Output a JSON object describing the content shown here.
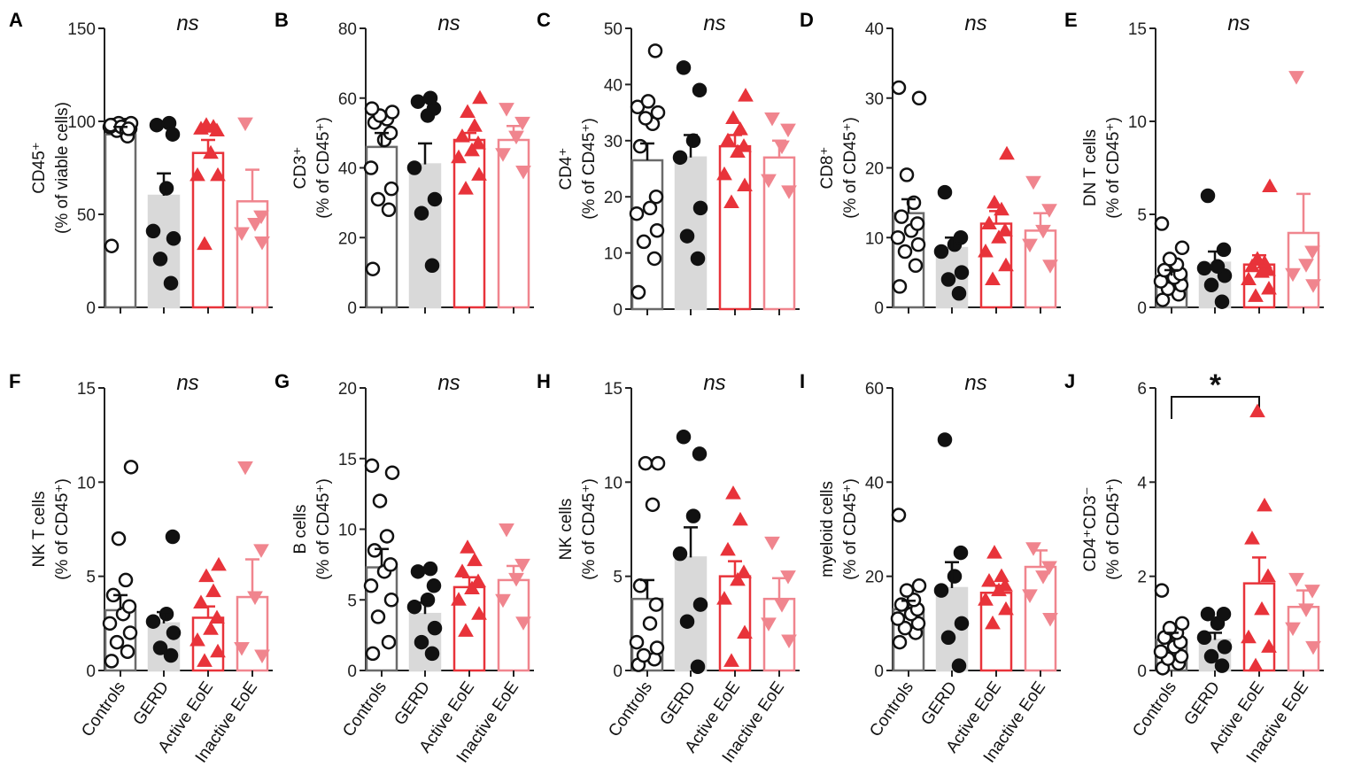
{
  "figure": {
    "groups": [
      "Controls",
      "GERD",
      "Active EoE",
      "Inactive EoE"
    ],
    "ns_label": "ns",
    "colors": {
      "controls": "#6b6b6b",
      "gerd_fill": "#d9d9d9",
      "gerd_points": "#111111",
      "active": "#e8333a",
      "inactive": "#f0858e",
      "axis": "#222222"
    }
  },
  "chart_data": [
    {
      "panel": "A",
      "type": "bar",
      "ylabel": [
        "CD45⁺",
        "(% of viable cells)"
      ],
      "ylim": [
        0,
        150
      ],
      "ticks": [
        0,
        50,
        100,
        150
      ],
      "annotation": "ns",
      "series": [
        {
          "name": "Controls",
          "mean": 93,
          "sem": 4,
          "points": [
            33,
            92,
            95,
            96,
            97,
            97,
            98,
            98,
            98,
            99,
            99,
            98,
            97,
            96
          ]
        },
        {
          "name": "GERD",
          "mean": 60,
          "sem": 12,
          "points": [
            13,
            26,
            37,
            41,
            64,
            93,
            98,
            99
          ]
        },
        {
          "name": "Active EoE",
          "mean": 83,
          "sem": 7,
          "points": [
            34,
            71,
            71,
            83,
            95,
            96,
            97,
            98
          ]
        },
        {
          "name": "Inactive EoE",
          "mean": 57,
          "sem": 17,
          "points": [
            35,
            40,
            45,
            49,
            99
          ]
        }
      ]
    },
    {
      "panel": "B",
      "type": "bar",
      "ylabel": [
        "CD3⁺",
        "(% of CD45⁺)"
      ],
      "ylim": [
        0,
        80
      ],
      "ticks": [
        0,
        20,
        40,
        60,
        80
      ],
      "annotation": "ns",
      "series": [
        {
          "name": "Controls",
          "mean": 46,
          "sem": 4,
          "points": [
            11,
            28,
            31,
            34,
            40,
            48,
            50,
            53,
            54,
            55,
            56,
            57
          ]
        },
        {
          "name": "GERD",
          "mean": 41,
          "sem": 6,
          "points": [
            12,
            27,
            31,
            40,
            55,
            57,
            59,
            60
          ]
        },
        {
          "name": "Active EoE",
          "mean": 48,
          "sem": 2,
          "points": [
            34,
            38,
            43,
            45,
            47,
            49,
            52,
            56,
            60
          ]
        },
        {
          "name": "Inactive EoE",
          "mean": 48,
          "sem": 4,
          "points": [
            39,
            44,
            49,
            53,
            57
          ]
        }
      ]
    },
    {
      "panel": "C",
      "type": "bar",
      "ylabel": [
        "CD4⁺",
        "(% of CD45⁺)"
      ],
      "ylim": [
        0,
        50
      ],
      "ticks": [
        0,
        10,
        20,
        30,
        40,
        50
      ],
      "annotation": "ns",
      "series": [
        {
          "name": "Controls",
          "mean": 26.5,
          "sem": 3,
          "points": [
            3,
            9,
            12,
            14,
            17,
            18,
            20,
            29,
            33,
            34,
            35,
            36,
            37,
            46
          ]
        },
        {
          "name": "GERD",
          "mean": 27,
          "sem": 4,
          "points": [
            9,
            13,
            18,
            27,
            30,
            39,
            43
          ]
        },
        {
          "name": "Active EoE",
          "mean": 29,
          "sem": 2,
          "points": [
            19,
            22,
            24,
            28,
            29,
            30,
            32,
            34,
            38
          ]
        },
        {
          "name": "Inactive EoE",
          "mean": 27,
          "sem": 3,
          "points": [
            21,
            23,
            29,
            32,
            34
          ]
        }
      ]
    },
    {
      "panel": "D",
      "type": "bar",
      "ylabel": [
        "CD8⁺",
        "(% of CD45⁺)"
      ],
      "ylim": [
        0,
        40
      ],
      "ticks": [
        0,
        10,
        20,
        30,
        40
      ],
      "annotation": "ns",
      "series": [
        {
          "name": "Controls",
          "mean": 13.5,
          "sem": 2,
          "points": [
            3,
            6,
            8,
            9,
            10,
            11,
            12,
            13,
            15,
            19,
            30,
            31.5
          ]
        },
        {
          "name": "GERD",
          "mean": 8.5,
          "sem": 1.5,
          "points": [
            2,
            4,
            5,
            8,
            9,
            10,
            16.5
          ]
        },
        {
          "name": "Active EoE",
          "mean": 12,
          "sem": 1.8,
          "points": [
            4,
            6,
            8,
            10,
            11,
            12,
            14,
            15,
            22
          ]
        },
        {
          "name": "Inactive EoE",
          "mean": 11,
          "sem": 2.5,
          "points": [
            6,
            9,
            11,
            14,
            18
          ]
        }
      ]
    },
    {
      "panel": "E",
      "type": "bar",
      "ylabel": [
        "DN T cells",
        "(% of CD45⁺)"
      ],
      "ylim": [
        0,
        15
      ],
      "ticks": [
        0,
        5,
        10,
        15
      ],
      "annotation": "ns",
      "series": [
        {
          "name": "Controls",
          "mean": 1.7,
          "sem": 0.3,
          "points": [
            0.4,
            0.7,
            1.0,
            1.2,
            1.4,
            1.6,
            1.8,
            2.0,
            2.3,
            2.6,
            3.2,
            4.5
          ]
        },
        {
          "name": "GERD",
          "mean": 2.4,
          "sem": 0.6,
          "points": [
            0.3,
            1.2,
            1.7,
            2.1,
            2.2,
            3.1,
            6.0
          ]
        },
        {
          "name": "Active EoE",
          "mean": 2.3,
          "sem": 0.5,
          "points": [
            0.6,
            1.0,
            1.5,
            1.9,
            2.0,
            2.2,
            2.4,
            2.6,
            6.5
          ]
        },
        {
          "name": "Inactive EoE",
          "mean": 4.0,
          "sem": 2.1,
          "points": [
            1.2,
            1.8,
            2.3,
            3.0,
            12.4
          ]
        }
      ]
    },
    {
      "panel": "F",
      "type": "bar",
      "ylabel": [
        "NK T cells",
        "(% of CD45⁺)"
      ],
      "ylim": [
        0,
        15
      ],
      "ticks": [
        0,
        5,
        10,
        15
      ],
      "annotation": "ns",
      "series": [
        {
          "name": "Controls",
          "mean": 3.2,
          "sem": 0.8,
          "points": [
            0.5,
            1.0,
            1.5,
            2.0,
            2.5,
            3.0,
            3.4,
            4.0,
            4.8,
            7.0,
            10.8
          ]
        },
        {
          "name": "GERD",
          "mean": 2.5,
          "sem": 0.6,
          "points": [
            0.8,
            1.2,
            2.0,
            2.6,
            3.0,
            7.1
          ]
        },
        {
          "name": "Active EoE",
          "mean": 2.8,
          "sem": 0.6,
          "points": [
            0.5,
            1.0,
            1.6,
            2.2,
            2.8,
            3.6,
            4.2,
            5.0,
            5.6
          ]
        },
        {
          "name": "Inactive EoE",
          "mean": 3.9,
          "sem": 2.0,
          "points": [
            0.8,
            1.2,
            3.9,
            6.4,
            10.8
          ]
        }
      ]
    },
    {
      "panel": "G",
      "type": "bar",
      "ylabel": [
        "B cells",
        "(% of CD45⁺)"
      ],
      "ylim": [
        0,
        20
      ],
      "ticks": [
        0,
        5,
        10,
        15,
        20
      ],
      "annotation": "ns",
      "series": [
        {
          "name": "Controls",
          "mean": 7.3,
          "sem": 1.3,
          "points": [
            1.2,
            2.0,
            3.8,
            5.0,
            6.0,
            7.0,
            7.5,
            8.5,
            9.5,
            12.0,
            14.0,
            14.5
          ]
        },
        {
          "name": "GERD",
          "mean": 4.0,
          "sem": 0.8,
          "points": [
            1.2,
            2.0,
            3.0,
            4.5,
            5.0,
            6.0,
            7.0,
            7.2
          ]
        },
        {
          "name": "Active EoE",
          "mean": 5.9,
          "sem": 0.7,
          "points": [
            2.8,
            4.0,
            5.0,
            5.8,
            6.3,
            7.0,
            7.8,
            8.7
          ]
        },
        {
          "name": "Inactive EoE",
          "mean": 6.4,
          "sem": 1.0,
          "points": [
            3.4,
            5.0,
            6.5,
            7.5,
            10.0
          ]
        }
      ]
    },
    {
      "panel": "H",
      "type": "bar",
      "ylabel": [
        "NK cells",
        "(% of CD45⁺)"
      ],
      "ylim": [
        0,
        15
      ],
      "ticks": [
        0,
        5,
        10,
        15
      ],
      "annotation": "ns",
      "series": [
        {
          "name": "Controls",
          "mean": 3.8,
          "sem": 1.0,
          "points": [
            0.3,
            0.6,
            0.8,
            1.2,
            1.5,
            2.5,
            3.5,
            4.5,
            8.8,
            11.0,
            11.0
          ]
        },
        {
          "name": "GERD",
          "mean": 6.0,
          "sem": 1.6,
          "points": [
            0.2,
            2.6,
            3.5,
            6.2,
            8.2,
            11.5,
            12.4
          ]
        },
        {
          "name": "Active EoE",
          "mean": 5.0,
          "sem": 0.8,
          "points": [
            0.5,
            2.0,
            3.8,
            4.8,
            5.2,
            6.4,
            8.0,
            9.4
          ]
        },
        {
          "name": "Inactive EoE",
          "mean": 3.8,
          "sem": 1.1,
          "points": [
            1.6,
            2.5,
            3.5,
            5.0,
            6.8
          ]
        }
      ]
    },
    {
      "panel": "I",
      "type": "bar",
      "ylabel": [
        "myeloid cells",
        "(% of CD45⁺)"
      ],
      "ylim": [
        0,
        60
      ],
      "ticks": [
        0,
        20,
        40,
        60
      ],
      "annotation": "ns",
      "series": [
        {
          "name": "Controls",
          "mean": 13,
          "sem": 1.8,
          "points": [
            6,
            8,
            9,
            10,
            11,
            12,
            13,
            14,
            15,
            17,
            18,
            33
          ]
        },
        {
          "name": "GERD",
          "mean": 17.5,
          "sem": 5.5,
          "points": [
            1,
            7,
            10,
            17,
            20,
            25,
            49
          ]
        },
        {
          "name": "Active EoE",
          "mean": 16.5,
          "sem": 1.5,
          "points": [
            10,
            13,
            15,
            17,
            18,
            19,
            20,
            25
          ]
        },
        {
          "name": "Inactive EoE",
          "mean": 22,
          "sem": 3.5,
          "points": [
            11,
            16,
            20,
            22,
            26
          ]
        }
      ]
    },
    {
      "panel": "J",
      "type": "bar",
      "ylabel": [
        "CD4⁺CD3⁻",
        "(% of CD45⁺)"
      ],
      "ylim": [
        0,
        6
      ],
      "ticks": [
        0,
        2,
        4,
        6
      ],
      "annotation": "*",
      "significance": {
        "from": "Controls",
        "to": "Active EoE",
        "label": "*"
      },
      "series": [
        {
          "name": "Controls",
          "mean": 0.65,
          "sem": 0.15,
          "points": [
            0.05,
            0.15,
            0.25,
            0.3,
            0.4,
            0.5,
            0.6,
            0.7,
            0.8,
            0.9,
            1.0,
            1.7
          ]
        },
        {
          "name": "GERD",
          "mean": 0.65,
          "sem": 0.15,
          "points": [
            0.1,
            0.3,
            0.5,
            0.7,
            1.0,
            1.2,
            1.2
          ]
        },
        {
          "name": "Active EoE",
          "mean": 1.85,
          "sem": 0.55,
          "points": [
            0.1,
            0.5,
            0.7,
            1.3,
            2.0,
            2.8,
            3.5,
            5.5
          ]
        },
        {
          "name": "Inactive EoE",
          "mean": 1.35,
          "sem": 0.35,
          "points": [
            0.5,
            0.9,
            1.3,
            1.7,
            1.95
          ]
        }
      ]
    }
  ]
}
